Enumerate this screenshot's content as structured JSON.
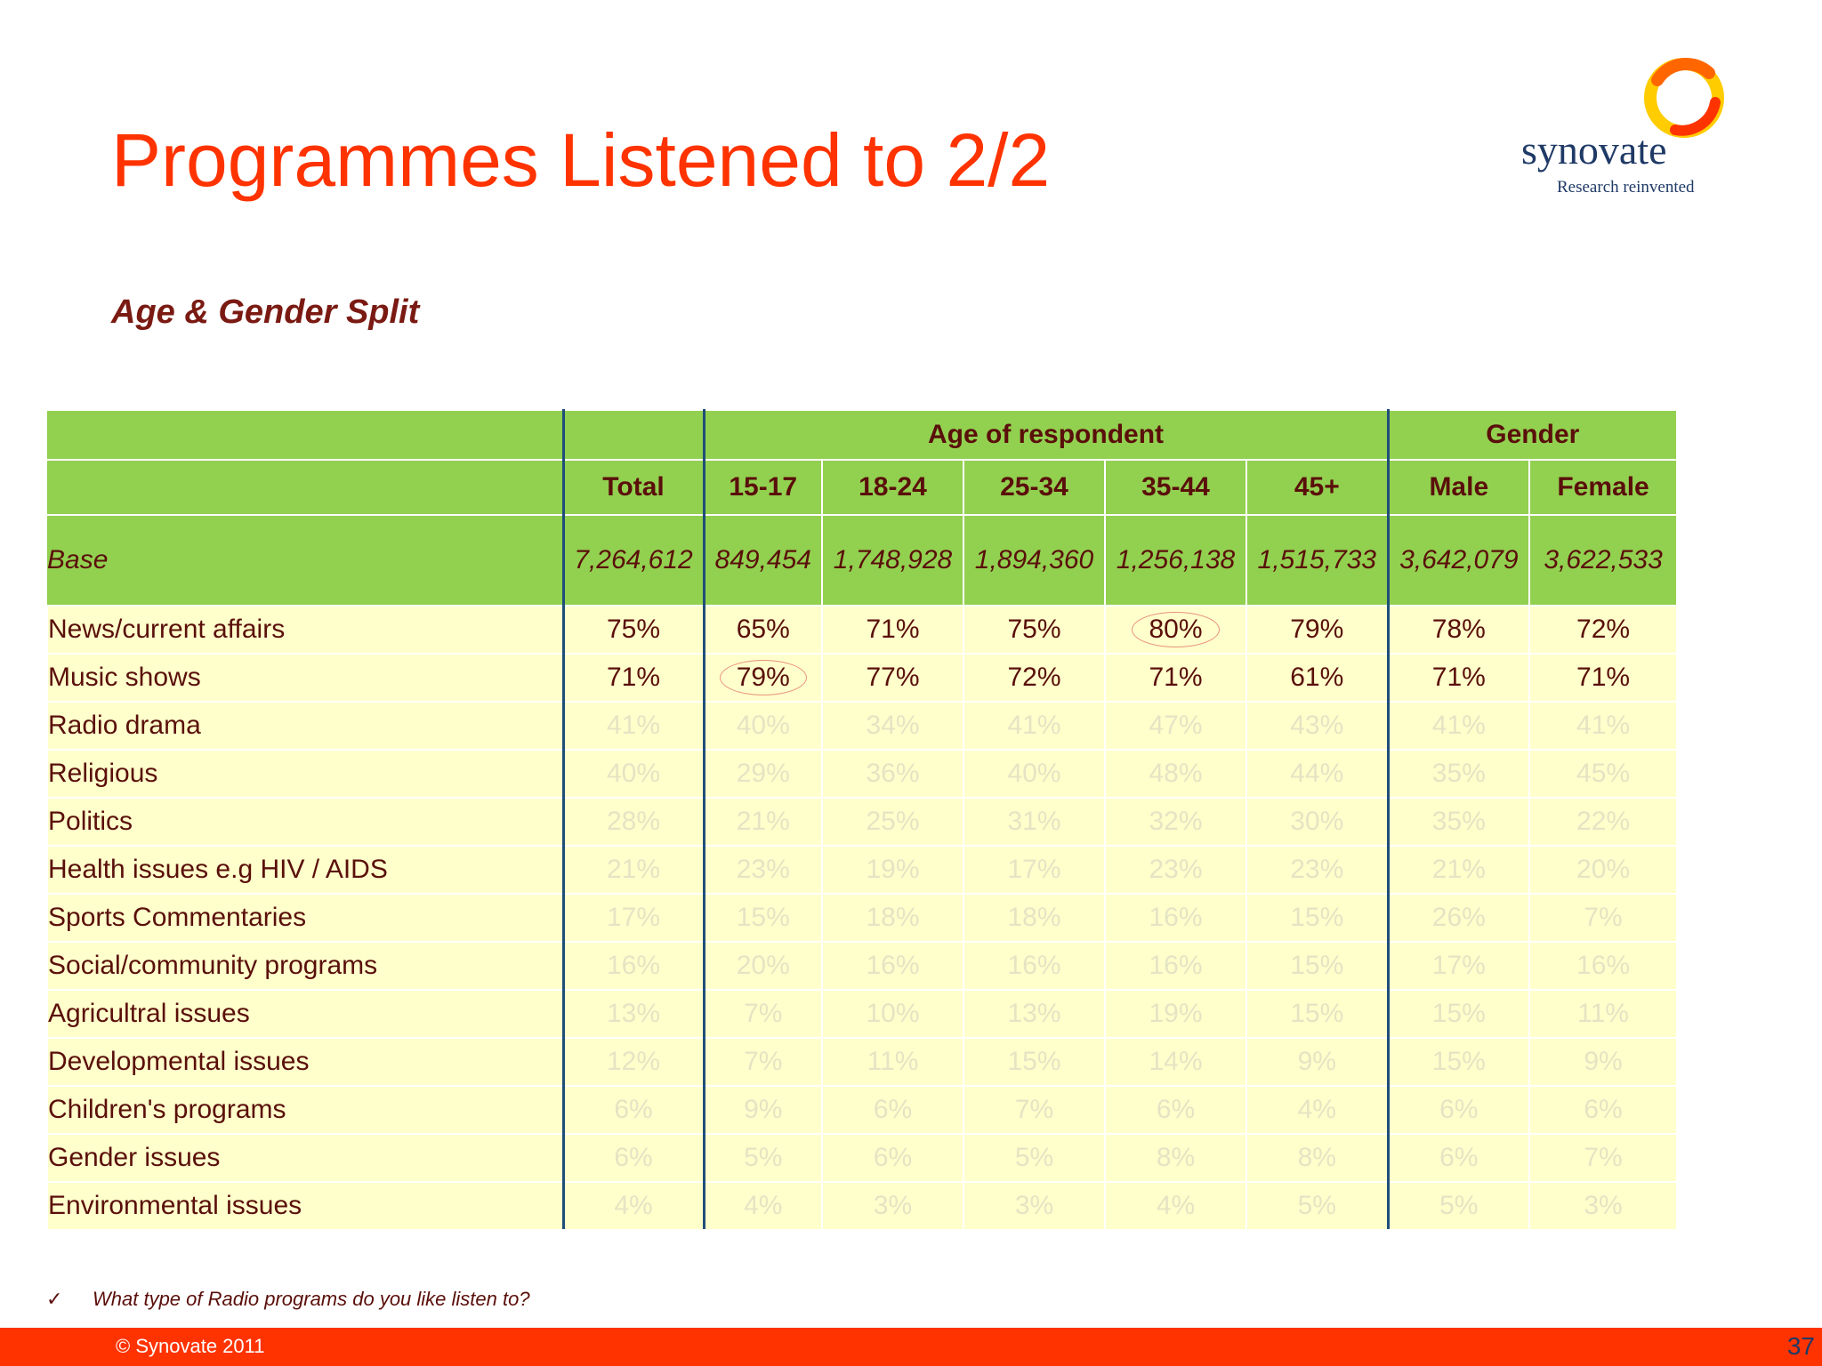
{
  "slide": {
    "title": "Programmes Listened to 2/2",
    "subtitle": "Age & Gender Split",
    "logo_word": "synovate",
    "logo_tagline": "Research reinvented",
    "note": "What type of Radio programs do you like listen to?",
    "footer_copyright": "© Synovate 2011",
    "page_number": "37",
    "colors": {
      "title": "#ff3300",
      "header_green": "#92d050",
      "row_fill": "#ffffcc",
      "footer_bar": "#ff3300",
      "text_dark_red": "#5a0f0a"
    },
    "icons": [
      "check-icon",
      "synovate-ring-logo"
    ]
  },
  "table": {
    "group_headers": {
      "age": "Age of respondent",
      "gender": "Gender"
    },
    "columns": [
      "Total",
      "15-17",
      "18-24",
      "25-34",
      "35-44",
      "45+",
      "Male",
      "Female"
    ],
    "base": {
      "label": "Base",
      "values": [
        "7,264,612",
        "849,454",
        "1,748,928",
        "1,894,360",
        "1,256,138",
        "1,515,733",
        "3,642,079",
        "3,622,533"
      ]
    },
    "rows": [
      {
        "label": "News/current affairs",
        "values": [
          "75%",
          "65%",
          "71%",
          "75%",
          "80%",
          "79%",
          "78%",
          "72%"
        ],
        "emphasis": "strong",
        "circled": [
          4
        ]
      },
      {
        "label": "Music shows",
        "values": [
          "71%",
          "79%",
          "77%",
          "72%",
          "71%",
          "61%",
          "71%",
          "71%"
        ],
        "emphasis": "strong",
        "circled": [
          1
        ]
      },
      {
        "label": "Radio drama",
        "values": [
          "41%",
          "40%",
          "34%",
          "41%",
          "47%",
          "43%",
          "41%",
          "41%"
        ],
        "emphasis": "faint",
        "circled": []
      },
      {
        "label": "Religious",
        "values": [
          "40%",
          "29%",
          "36%",
          "40%",
          "48%",
          "44%",
          "35%",
          "45%"
        ],
        "emphasis": "faint",
        "circled": []
      },
      {
        "label": "Politics",
        "values": [
          "28%",
          "21%",
          "25%",
          "31%",
          "32%",
          "30%",
          "35%",
          "22%"
        ],
        "emphasis": "faint",
        "circled": []
      },
      {
        "label": "Health issues e.g HIV / AIDS",
        "values": [
          "21%",
          "23%",
          "19%",
          "17%",
          "23%",
          "23%",
          "21%",
          "20%"
        ],
        "emphasis": "faint",
        "circled": []
      },
      {
        "label": "Sports Commentaries",
        "values": [
          "17%",
          "15%",
          "18%",
          "18%",
          "16%",
          "15%",
          "26%",
          "7%"
        ],
        "emphasis": "faint",
        "circled": []
      },
      {
        "label": "Social/community programs",
        "values": [
          "16%",
          "20%",
          "16%",
          "16%",
          "16%",
          "15%",
          "17%",
          "16%"
        ],
        "emphasis": "faint",
        "circled": []
      },
      {
        "label": "Agricultral issues",
        "values": [
          "13%",
          "7%",
          "10%",
          "13%",
          "19%",
          "15%",
          "15%",
          "11%"
        ],
        "emphasis": "faint",
        "circled": []
      },
      {
        "label": "Developmental issues",
        "values": [
          "12%",
          "7%",
          "11%",
          "15%",
          "14%",
          "9%",
          "15%",
          "9%"
        ],
        "emphasis": "faint",
        "circled": []
      },
      {
        "label": "Children's programs",
        "values": [
          "6%",
          "9%",
          "6%",
          "7%",
          "6%",
          "4%",
          "6%",
          "6%"
        ],
        "emphasis": "faint",
        "circled": []
      },
      {
        "label": "Gender issues",
        "values": [
          "6%",
          "5%",
          "6%",
          "5%",
          "8%",
          "8%",
          "6%",
          "7%"
        ],
        "emphasis": "faint",
        "circled": []
      },
      {
        "label": "Environmental issues",
        "values": [
          "4%",
          "4%",
          "3%",
          "3%",
          "4%",
          "5%",
          "5%",
          "3%"
        ],
        "emphasis": "faint",
        "circled": []
      }
    ]
  }
}
